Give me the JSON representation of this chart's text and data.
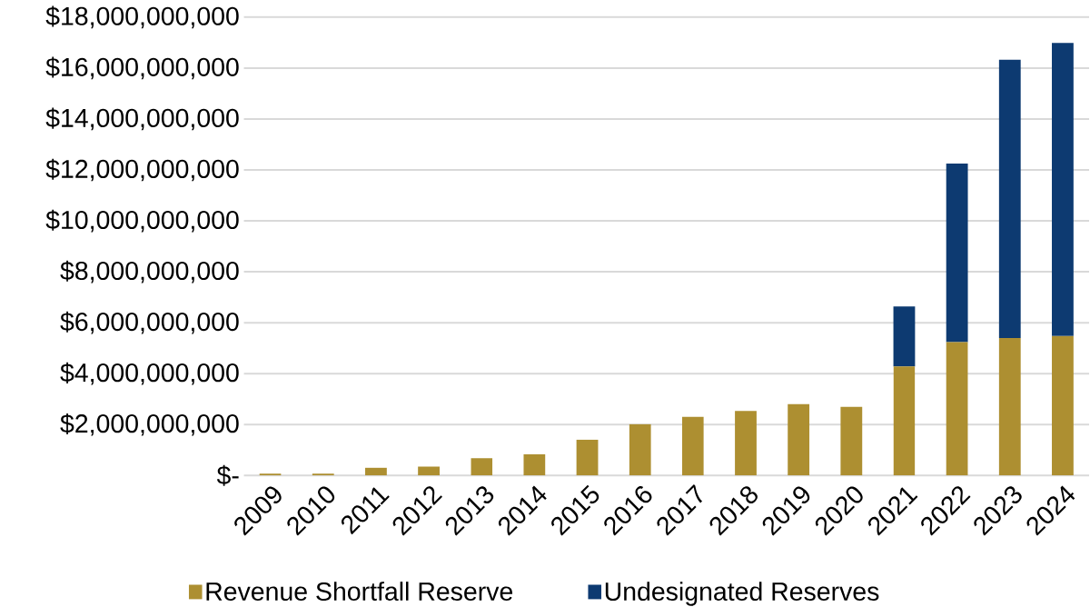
{
  "chart_data": {
    "type": "bar",
    "stacked": true,
    "grid": "y",
    "legend": "bottom",
    "categories": [
      "2009",
      "2010",
      "2011",
      "2012",
      "2013",
      "2014",
      "2015",
      "2016",
      "2017",
      "2018",
      "2019",
      "2020",
      "2021",
      "2022",
      "2023",
      "2024"
    ],
    "series": [
      {
        "name": "Revenue Shortfall Reserve",
        "color": "#ad8f31",
        "values": [
          70000000,
          70000000,
          310000000,
          350000000,
          680000000,
          840000000,
          1410000000,
          2020000000,
          2310000000,
          2540000000,
          2800000000,
          2700000000,
          4280000000,
          5240000000,
          5400000000,
          5480000000
        ]
      },
      {
        "name": "Undesignated Reserves",
        "color": "#0d3a71",
        "values": [
          null,
          null,
          null,
          null,
          null,
          null,
          null,
          null,
          null,
          null,
          null,
          null,
          2360000000,
          7010000000,
          10930000000,
          11510000000
        ]
      }
    ],
    "ylim": [
      0,
      18000000000
    ],
    "yticks": [
      {
        "value": 0,
        "label": "$-"
      },
      {
        "value": 2000000000,
        "label": "$2,000,000,000"
      },
      {
        "value": 4000000000,
        "label": "$4,000,000,000"
      },
      {
        "value": 6000000000,
        "label": "$6,000,000,000"
      },
      {
        "value": 8000000000,
        "label": "$8,000,000,000"
      },
      {
        "value": 10000000000,
        "label": "$10,000,000,000"
      },
      {
        "value": 12000000000,
        "label": "$12,000,000,000"
      },
      {
        "value": 14000000000,
        "label": "$14,000,000,000"
      },
      {
        "value": 16000000000,
        "label": "$16,000,000,000"
      },
      {
        "value": 18000000000,
        "label": "$18,000,000,000"
      }
    ]
  }
}
